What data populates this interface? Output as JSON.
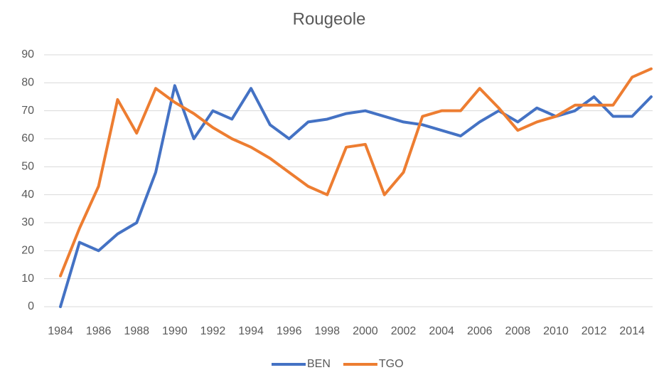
{
  "chart_data": {
    "type": "line",
    "title": "Rougeole",
    "categories": [
      "1984",
      null,
      "1986",
      null,
      "1988",
      null,
      "1990",
      null,
      "1992",
      null,
      "1994",
      null,
      "1996",
      null,
      "1998",
      null,
      "2000",
      null,
      "2002",
      null,
      "2004",
      null,
      "2006",
      null,
      "2008",
      null,
      "2010",
      null,
      "2012",
      null,
      "2014",
      null
    ],
    "series": [
      {
        "name": "BEN",
        "color": "#4472c4",
        "values": [
          0,
          23,
          20,
          26,
          30,
          48,
          79,
          60,
          70,
          67,
          78,
          65,
          60,
          66,
          67,
          69,
          70,
          68,
          66,
          65,
          63,
          61,
          66,
          70,
          66,
          71,
          68,
          70,
          75,
          68,
          68,
          75
        ]
      },
      {
        "name": "TGO",
        "color": "#ed7d31",
        "values": [
          11,
          28,
          43,
          74,
          62,
          78,
          73,
          69,
          64,
          60,
          57,
          53,
          48,
          43,
          40,
          57,
          58,
          40,
          48,
          68,
          70,
          70,
          78,
          71,
          63,
          66,
          68,
          72,
          72,
          72,
          82,
          85
        ]
      }
    ],
    "ylim": [
      0,
      90
    ],
    "yticks": [
      0,
      10,
      20,
      30,
      40,
      50,
      60,
      70,
      80,
      90
    ],
    "grid": true,
    "legend": "bottom"
  }
}
